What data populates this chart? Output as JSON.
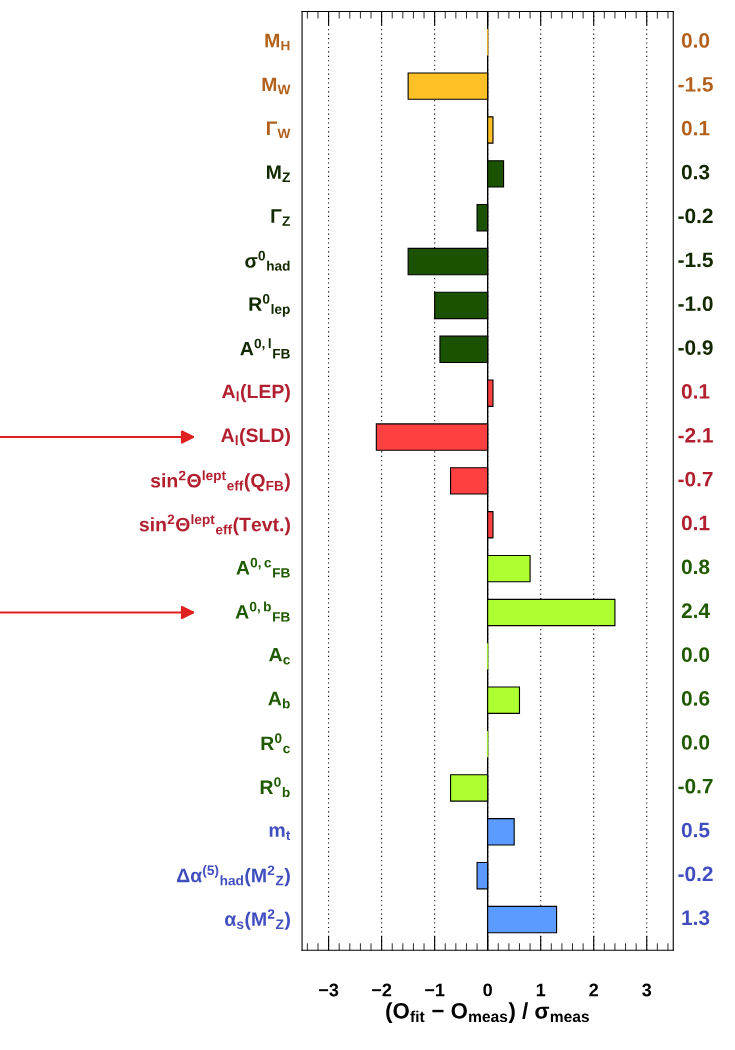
{
  "chart_data": {
    "type": "bar",
    "orientation": "horizontal",
    "xlabel": "(O$_{fit}$ − O$_{meas}$) / σ$_{meas}$",
    "categories": [
      "M$_{H}$",
      "M$_{W}$",
      "Γ$_{W}$",
      "M$_{Z}$",
      "Γ$_{Z}$",
      "σ$^{0}$$_{had}$",
      "R$^{0}$$_{lep}$",
      "A$^{0,l}$$_{FB}$",
      "A$_{l}$(LEP)",
      "A$_{l}$(SLD)",
      "sin$^{2}$Θ$^{lept}$$_{eff}$(Q$_{FB}$)",
      "sin$^{2}$Θ$^{lept}$$_{eff}$(Tevt.)",
      "A$^{0,c}$$_{FB}$",
      "A$^{0,b}$$_{FB}$",
      "A$_{c}$",
      "A$_{b}$",
      "R$^{0}$$_{c}$",
      "R$^{0}$$_{b}$",
      "m$_{t}$",
      "Δα$^{(5)}$$_{had}$(M$^{2}$$_{Z}$)",
      "α$_{s}$(M$^{2}$$_{Z}$)"
    ],
    "values": [
      0.0,
      -1.5,
      0.1,
      0.3,
      -0.2,
      -1.5,
      -1.0,
      -0.9,
      0.1,
      -2.1,
      -0.7,
      0.1,
      0.8,
      2.4,
      0.0,
      0.6,
      0.0,
      -0.7,
      0.5,
      -0.2,
      1.3
    ],
    "value_labels": [
      "0.0",
      "-1.5",
      "0.1",
      "0.3",
      "-0.2",
      "-1.5",
      "-1.0",
      "-0.9",
      "0.1",
      "-2.1",
      "-0.7",
      "0.1",
      "0.8",
      "2.4",
      "0.0",
      "0.6",
      "0.0",
      "-0.7",
      "0.5",
      "-0.2",
      "1.3"
    ],
    "colors": [
      "#ffc125",
      "#ffc125",
      "#ffc125",
      "#1a5200",
      "#1a5200",
      "#1a5200",
      "#1a5200",
      "#1a5200",
      "#ff4040",
      "#ff4040",
      "#ff4040",
      "#ff4040",
      "#adff2f",
      "#adff2f",
      "#adff2f",
      "#adff2f",
      "#adff2f",
      "#adff2f",
      "#5b9bff",
      "#5b9bff",
      "#5b9bff"
    ],
    "xlim": [
      -3.5,
      3.5
    ],
    "xticks": [
      {
        "value": -3,
        "label": "−3"
      },
      {
        "value": -2,
        "label": "−2"
      },
      {
        "value": -1,
        "label": "−1"
      },
      0,
      1,
      2,
      3
    ],
    "grid": "x",
    "ref_lines": [
      {
        "axis": "x",
        "value": 0,
        "color": "#000000",
        "line_style": "solid"
      }
    ]
  }
}
